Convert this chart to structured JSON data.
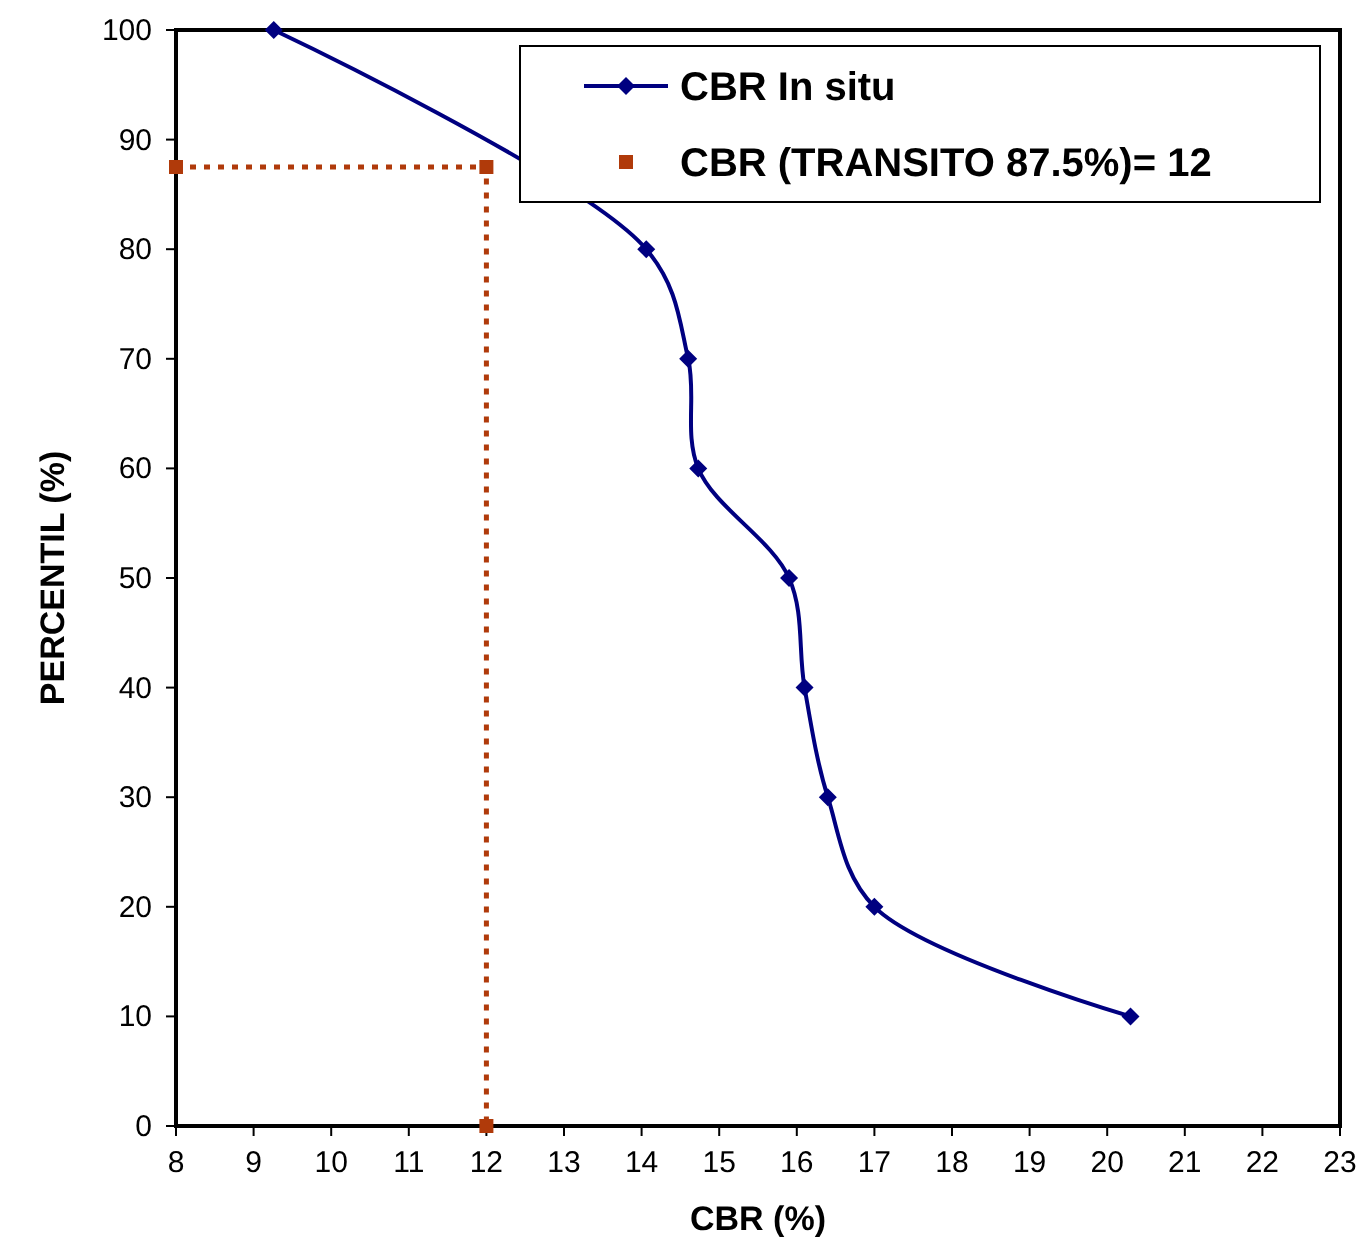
{
  "chart_data": {
    "type": "line",
    "xlabel": "CBR (%)",
    "ylabel": "PERCENTIL (%)",
    "xlim": [
      8,
      23
    ],
    "xticks": [
      8,
      9,
      10,
      11,
      12,
      13,
      14,
      15,
      16,
      17,
      18,
      19,
      20,
      21,
      22,
      23
    ],
    "ylim": [
      0,
      100
    ],
    "yticks": [
      0,
      10,
      20,
      30,
      40,
      50,
      60,
      70,
      80,
      90,
      100
    ],
    "grid": false,
    "legend": "top right",
    "series": [
      {
        "name": "CBR In situ",
        "color": "#000080",
        "marker": "diamond",
        "line_style": "solid",
        "x": [
          9.26,
          14.06,
          14.6,
          14.73,
          15.9,
          16.1,
          16.4,
          17.0,
          20.3
        ],
        "values": [
          100,
          80,
          70,
          60,
          50,
          40,
          30,
          20,
          10
        ]
      },
      {
        "name": "CBR (TRANSITO 87.5%)= 12",
        "color": "#b03a0a",
        "marker": "square",
        "line_style": "dotted",
        "x": [
          8,
          12,
          12
        ],
        "values": [
          87.5,
          87.5,
          0
        ]
      }
    ]
  }
}
